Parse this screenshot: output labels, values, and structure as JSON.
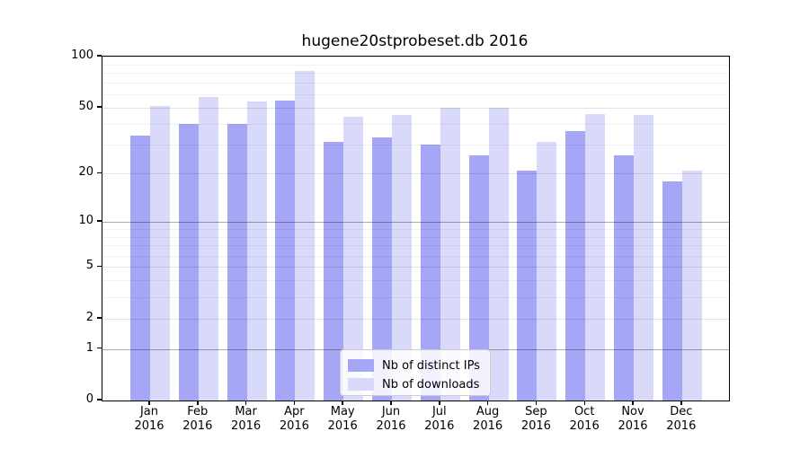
{
  "title": "hugene20stprobeset.db 2016",
  "chart_data": {
    "type": "bar",
    "title": "hugene20stprobeset.db 2016",
    "categories": [
      "Jan",
      "Feb",
      "Mar",
      "Apr",
      "May",
      "Jun",
      "Jul",
      "Aug",
      "Sep",
      "Oct",
      "Nov",
      "Dec"
    ],
    "category_year": "2016",
    "series": [
      {
        "name": "Nb of distinct IPs",
        "color": "#a6a6f6",
        "values": [
          34,
          40,
          40,
          55,
          31,
          33,
          30,
          26,
          21,
          36,
          26,
          18
        ]
      },
      {
        "name": "Nb of downloads",
        "color": "#d9d9f9",
        "values": [
          51,
          58,
          54,
          82,
          44,
          45,
          50,
          50,
          31,
          46,
          45,
          21
        ]
      }
    ],
    "y_axis": {
      "scale": "log1p",
      "tick_values": [
        0,
        1,
        2,
        5,
        10,
        20,
        50,
        100
      ],
      "minor_tick_values": [
        3,
        4,
        6,
        7,
        8,
        9,
        30,
        40,
        60,
        70,
        80,
        90
      ],
      "strong_gridlines": [
        1,
        10
      ],
      "max": 100
    },
    "xlabel": "",
    "ylabel": "",
    "grid": true,
    "legend_position": "bottom-center-inside"
  },
  "colors": {
    "bar_distinct_ips": "#a6a6f6",
    "bar_downloads": "#d9d9f9",
    "axis": "#000000",
    "legend_border": "#cccccc"
  }
}
